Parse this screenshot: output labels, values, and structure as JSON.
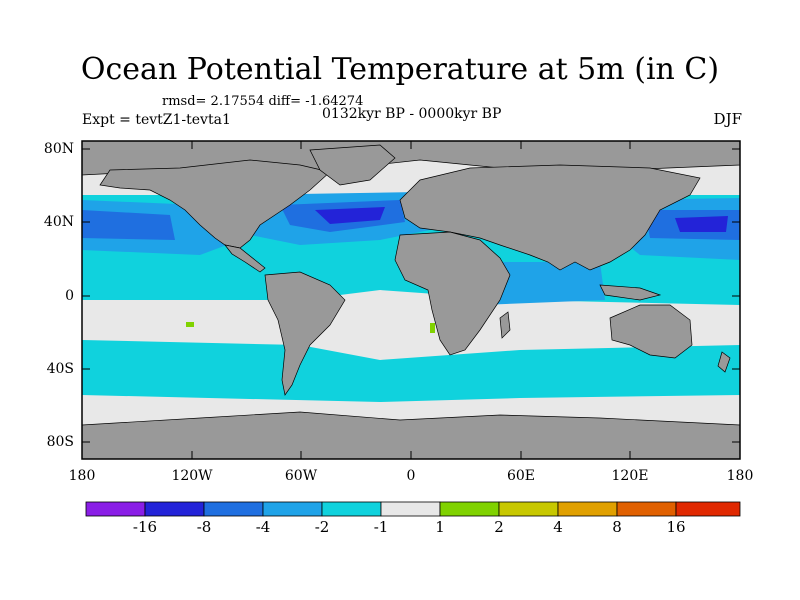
{
  "title": "Ocean Potential Temperature at 5m (in C)",
  "stats": "rmsd= 2.17554  diff= -1.64274",
  "experiment": "Expt = tevtZ1-tevta1",
  "period": "0132kyr BP - 0000kyr BP",
  "season": "DJF",
  "y_ticks": [
    "80N",
    "40N",
    "0",
    "40S",
    "80S"
  ],
  "x_ticks": [
    "180",
    "120W",
    "60W",
    "0",
    "60E",
    "120E",
    "180"
  ],
  "colorbar": {
    "labels": [
      "-16",
      "-8",
      "-4",
      "-2",
      "-1",
      "1",
      "2",
      "4",
      "8",
      "16"
    ],
    "colors": [
      "#8a1ee6",
      "#2323d8",
      "#1f6fe0",
      "#1fa3e8",
      "#10d2dd",
      "#e8e8e8",
      "#80d200",
      "#c8c800",
      "#e0a000",
      "#e06000",
      "#e02800"
    ]
  },
  "map_colors": {
    "land": "#999999",
    "neutral": "#e8e8e8",
    "cyan": "#10d2dd",
    "light_blue": "#1fa3e8",
    "blue": "#1f6fe0",
    "dark_blue": "#2323d8",
    "green": "#80d200"
  }
}
